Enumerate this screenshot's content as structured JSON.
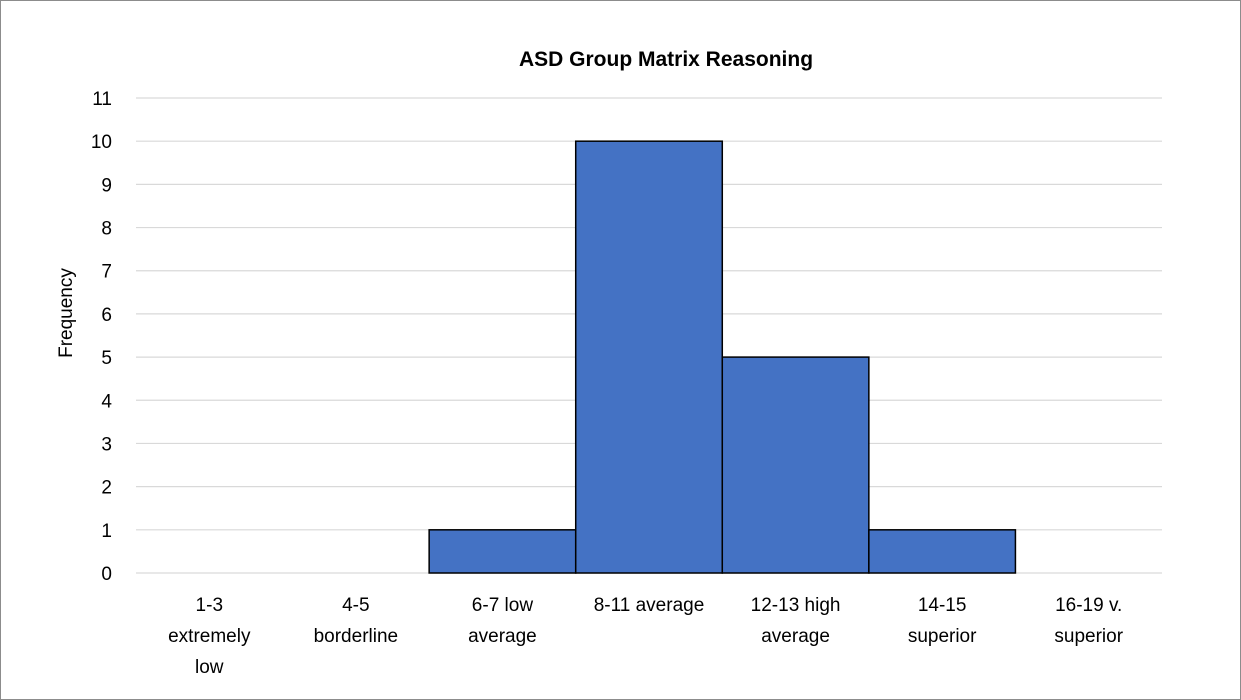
{
  "chart_data": {
    "type": "bar",
    "title": "ASD Group Matrix Reasoning",
    "xlabel": "",
    "ylabel": "Frequency",
    "categories": [
      "1-3 extremely low",
      "4-5 borderline",
      "6-7 low average",
      "8-11 average",
      "12-13 high average",
      "14-15 superior",
      "16-19 v. superior"
    ],
    "category_lines": [
      [
        "1-3",
        "extremely",
        "low"
      ],
      [
        "4-5",
        "borderline"
      ],
      [
        "6-7 low",
        "average"
      ],
      [
        "8-11 average"
      ],
      [
        "12-13 high",
        "average"
      ],
      [
        "14-15",
        "superior"
      ],
      [
        "16-19  v.",
        "superior"
      ]
    ],
    "values": [
      0,
      0,
      1,
      10,
      5,
      1,
      0
    ],
    "ylim": [
      0,
      11
    ],
    "yticks": [
      0,
      1,
      2,
      3,
      4,
      5,
      6,
      7,
      8,
      9,
      10,
      11
    ],
    "grid": true,
    "legend": "none",
    "bar_color": "#4472C4",
    "bar_edge_color": "#000000",
    "gridline_color": "#d9d9d9"
  }
}
